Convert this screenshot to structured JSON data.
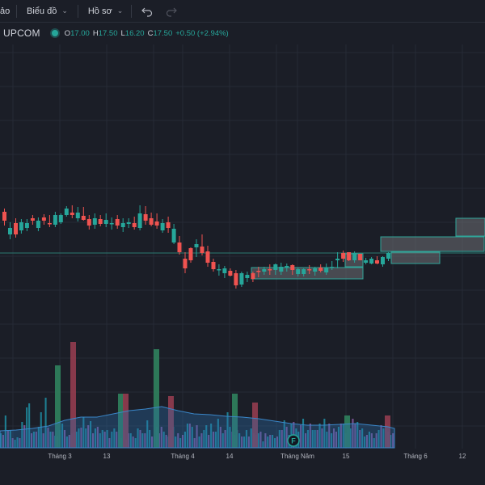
{
  "toolbar": {
    "item0_label": "ảo",
    "chart_menu_label": "Biểu đồ",
    "profile_menu_label": "Hồ sơ",
    "chevron": "⌄",
    "undo_icon": "undo-icon",
    "redo_icon": "redo-icon"
  },
  "legend": {
    "symbol": "UPCOM",
    "open_label": "O",
    "open_value": "17.00",
    "high_label": "H",
    "high_value": "17.50",
    "low_label": "L",
    "low_value": "16.20",
    "close_label": "C",
    "close_value": "17.50",
    "change": "+0.50 (+2.94%)",
    "status_color": "#26a69a"
  },
  "events": {
    "marker_label": "F"
  },
  "x_axis": {
    "labels": [
      "Tháng 3",
      "13",
      "Tháng 4",
      "14",
      "Tháng Năm",
      "15",
      "Tháng 6",
      "12"
    ]
  },
  "colors": {
    "up": "#26a69a",
    "down": "#ef5350",
    "background": "#1b1e27",
    "box_fill": "#6e7075",
    "box_stroke": "#2fa79a"
  },
  "chart_data": {
    "type": "candlestick",
    "up_flags": [
      0,
      1,
      0,
      1,
      1,
      0,
      1,
      0,
      0,
      1,
      1,
      1,
      0,
      1,
      0,
      0,
      1,
      0,
      1,
      1,
      0,
      1,
      1,
      0,
      1,
      0,
      0,
      0,
      1,
      0,
      1,
      0,
      0,
      0,
      1,
      0,
      0,
      0,
      1,
      1,
      0,
      0,
      1,
      1,
      0,
      0,
      1,
      0,
      1,
      1,
      1,
      0,
      1,
      1,
      0,
      1,
      0,
      1,
      1,
      1,
      0,
      0,
      1,
      0,
      1,
      1,
      0,
      1,
      1
    ],
    "ohlc_px": [
      [
        262,
        258,
        279,
        273
      ],
      [
        282,
        275,
        296,
        290
      ],
      [
        276,
        270,
        294,
        290
      ],
      [
        285,
        271,
        289,
        275
      ],
      [
        282,
        271,
        286,
        276
      ],
      [
        270,
        266,
        278,
        273
      ],
      [
        282,
        269,
        286,
        273
      ],
      [
        269,
        265,
        278,
        273
      ],
      [
        276,
        266,
        281,
        277
      ],
      [
        278,
        262,
        281,
        266
      ],
      [
        275,
        264,
        277,
        266
      ],
      [
        266,
        255,
        268,
        258
      ],
      [
        263,
        254,
        270,
        266
      ],
      [
        263,
        256,
        274,
        270
      ],
      [
        267,
        256,
        273,
        272
      ],
      [
        271,
        266,
        284,
        279
      ],
      [
        270,
        264,
        283,
        278
      ],
      [
        271,
        266,
        280,
        277
      ],
      [
        277,
        264,
        281,
        272
      ],
      [
        276,
        269,
        284,
        276
      ],
      [
        271,
        266,
        283,
        279
      ],
      [
        281,
        270,
        287,
        276
      ],
      [
        275,
        270,
        282,
        277
      ],
      [
        276,
        268,
        284,
        281
      ],
      [
        282,
        254,
        285,
        264
      ],
      [
        265,
        255,
        278,
        273
      ],
      [
        270,
        263,
        280,
        278
      ],
      [
        274,
        264,
        283,
        279
      ],
      [
        285,
        271,
        288,
        276
      ],
      [
        275,
        268,
        288,
        282
      ],
      [
        283,
        277,
        302,
        300
      ],
      [
        300,
        292,
        315,
        312
      ],
      [
        320,
        312,
        338,
        332
      ],
      [
        322,
        306,
        325,
        307
      ],
      [
        306,
        296,
        318,
        302
      ],
      [
        305,
        290,
        316,
        313
      ],
      [
        311,
        304,
        330,
        325
      ],
      [
        324,
        320,
        336,
        333
      ],
      [
        333,
        327,
        341,
        334
      ],
      [
        332,
        329,
        344,
        338
      ],
      [
        335,
        332,
        342,
        341
      ],
      [
        338,
        334,
        357,
        353
      ],
      [
        352,
        336,
        355,
        338
      ],
      [
        344,
        336,
        349,
        340
      ],
      [
        345,
        336,
        349,
        338
      ],
      [
        335,
        330,
        343,
        336
      ],
      [
        336,
        330,
        340,
        333
      ],
      [
        333,
        327,
        340,
        333
      ],
      [
        334,
        326,
        340,
        327
      ],
      [
        336,
        325,
        340,
        330
      ],
      [
        331,
        326,
        336,
        329
      ],
      [
        334,
        327,
        340,
        328
      ],
      [
        339,
        331,
        342,
        333
      ],
      [
        339,
        332,
        342,
        333
      ],
      [
        333,
        328,
        339,
        333
      ],
      [
        336,
        330,
        341,
        332
      ],
      [
        331,
        327,
        337,
        335
      ],
      [
        337,
        326,
        340,
        331
      ],
      [
        331,
        323,
        334,
        330
      ],
      [
        320,
        312,
        332,
        322
      ],
      [
        313,
        310,
        324,
        320
      ],
      [
        312,
        312,
        323,
        322
      ],
      [
        322,
        311,
        325,
        313
      ],
      [
        314,
        314,
        322,
        322
      ],
      [
        322,
        319,
        327,
        325
      ],
      [
        326,
        318,
        327,
        320
      ],
      [
        322,
        317,
        327,
        326
      ],
      [
        327,
        317,
        330,
        318
      ],
      [
        320,
        312,
        323,
        313
      ]
    ],
    "volume_h": [
      18,
      16,
      40,
      22,
      22,
      12,
      10,
      13,
      12,
      32,
      28,
      50,
      55,
      18,
      20,
      20,
      26,
      44,
      18,
      62,
      25,
      20,
      20,
      15,
      14,
      22,
      30,
      22,
      14,
      16,
      18,
      20,
      20,
      24,
      25,
      38,
      24,
      28,
      33,
      18,
      24,
      26,
      18,
      22,
      20,
      22,
      12,
      20,
      24,
      20,
      22,
      12,
      22,
      10,
      18,
      18,
      14,
      12,
      24,
      22,
      18,
      18,
      34,
      22,
      14,
      14,
      26,
      18,
      26,
      20,
      16,
      14,
      22,
      26,
      14,
      18,
      12,
      16,
      20,
      30,
      30,
      26,
      12,
      28,
      14,
      18,
      22,
      28,
      16,
      30,
      20,
      20,
      36,
      26,
      18,
      22,
      44,
      26,
      20,
      16,
      22,
      18,
      14,
      14,
      22,
      14,
      24,
      18,
      16,
      18,
      20,
      8,
      18,
      14,
      16,
      16,
      12,
      14,
      22,
      22,
      34,
      26,
      16,
      30,
      32,
      24,
      20,
      28,
      36,
      18,
      22,
      30,
      22,
      22,
      22,
      30,
      24,
      36,
      20,
      30,
      18,
      24,
      20,
      26,
      30,
      30,
      18,
      24,
      24,
      36,
      30,
      32,
      22,
      24,
      14,
      16,
      20,
      18,
      12,
      18,
      22,
      28,
      24,
      30,
      20,
      16,
      18
    ],
    "volume_color_flags": [
      1,
      0,
      1,
      0,
      1,
      0,
      1,
      1,
      0,
      1,
      0,
      1,
      1,
      0,
      1,
      0,
      1,
      1,
      0,
      1,
      0,
      1,
      0,
      1,
      0,
      1,
      1,
      0,
      1,
      0,
      1,
      0,
      1,
      1,
      0,
      1,
      1,
      0,
      1,
      0,
      1,
      0,
      1,
      1,
      0,
      1,
      0,
      1,
      1,
      0,
      0,
      1,
      0,
      1,
      0,
      1,
      0,
      1,
      1,
      0,
      1,
      0,
      1,
      1,
      0,
      1,
      1,
      0,
      0,
      1,
      0,
      1,
      0,
      1,
      1,
      0,
      1,
      0,
      1,
      1,
      0,
      1,
      0,
      0,
      1,
      0,
      1,
      1,
      0,
      1,
      0,
      1,
      1,
      0,
      1,
      0,
      1,
      1,
      0,
      1,
      0,
      1,
      0,
      1,
      1,
      0,
      1,
      0,
      1,
      1,
      0,
      1,
      0,
      1,
      0,
      1,
      1,
      0,
      1,
      0,
      1,
      0,
      1,
      1,
      0,
      1,
      1,
      0,
      1,
      0,
      1,
      0,
      1,
      1,
      0,
      1,
      0,
      1,
      1,
      0,
      1,
      0,
      0,
      1,
      0,
      1,
      0,
      1,
      1,
      0,
      0,
      1,
      0,
      1,
      1,
      0,
      1,
      0,
      1,
      0,
      1,
      0,
      1,
      0,
      0,
      1,
      0
    ],
    "volume_ma_points": [
      [
        0,
        533
      ],
      [
        20,
        532
      ],
      [
        40,
        530
      ],
      [
        60,
        527
      ],
      [
        80,
        520
      ],
      [
        100,
        516
      ],
      [
        120,
        516
      ],
      [
        140,
        512
      ],
      [
        160,
        508
      ],
      [
        180,
        506
      ],
      [
        200,
        503
      ],
      [
        220,
        508
      ],
      [
        240,
        512
      ],
      [
        260,
        513
      ],
      [
        280,
        515
      ],
      [
        300,
        516
      ],
      [
        320,
        518
      ],
      [
        340,
        521
      ],
      [
        360,
        524
      ],
      [
        380,
        526
      ],
      [
        400,
        526
      ],
      [
        420,
        525
      ],
      [
        440,
        524
      ],
      [
        460,
        526
      ],
      [
        480,
        528
      ],
      [
        488,
        530
      ]
    ],
    "tall_bars": [
      [
        68,
        452
      ],
      [
        87,
        423
      ],
      [
        146,
        487
      ],
      [
        152,
        487
      ],
      [
        190,
        432
      ],
      [
        208,
        490
      ],
      [
        287,
        487
      ],
      [
        312,
        498
      ],
      [
        426,
        514
      ],
      [
        476,
        514
      ]
    ],
    "zone_boxes": [
      [
        311,
        331,
        138,
        14
      ],
      [
        427,
        314,
        22,
        16
      ],
      [
        471,
        293,
        128,
        18
      ],
      [
        484,
        312,
        60,
        14
      ],
      [
        564,
        270,
        36,
        22
      ]
    ],
    "price_line_y": 313,
    "x_label_positions": [
      74,
      132,
      226,
      284,
      368,
      428,
      514,
      572
    ],
    "plot_left_edge": 0,
    "x_label_y": 567
  }
}
